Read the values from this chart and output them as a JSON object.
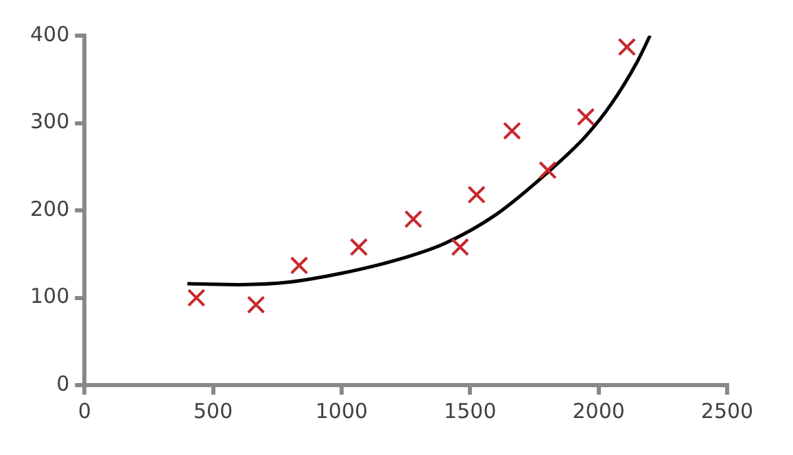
{
  "chart_data": {
    "type": "scatter",
    "xlim": [
      0,
      2500
    ],
    "ylim": [
      0,
      400
    ],
    "xticks": [
      0,
      500,
      1000,
      1500,
      2000,
      2500
    ],
    "yticks": [
      0,
      100,
      200,
      300,
      400
    ],
    "grid": false,
    "legend": false,
    "series": [
      {
        "color": "#c8282d",
        "marker": "cross",
        "x": [
          435,
          667,
          835,
          1067,
          1279,
          1461,
          1525,
          1663,
          1802,
          1950,
          2110
        ],
        "values": [
          100,
          92,
          137,
          158,
          190,
          158,
          218,
          291,
          246,
          307,
          387
        ]
      },
      {
        "type": "line",
        "color": "#000000",
        "marker": "none",
        "line_style": "solid",
        "x": [
          400,
          600,
          800,
          1000,
          1200,
          1400,
          1600,
          1800,
          1950,
          2050,
          2150,
          2200
        ],
        "values": [
          116,
          115,
          118,
          128,
          142,
          162,
          195,
          243,
          285,
          322,
          370,
          400
        ]
      }
    ]
  }
}
